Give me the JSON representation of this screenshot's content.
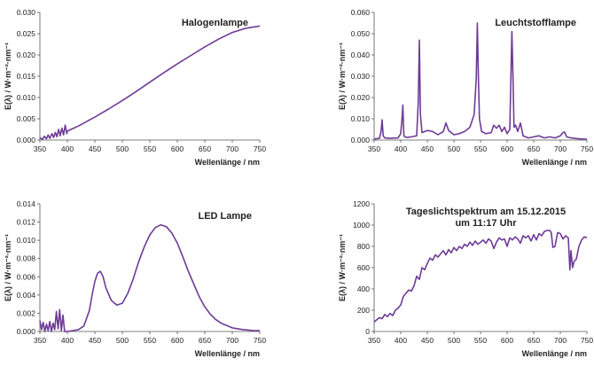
{
  "colors": {
    "series": "#6e3b97",
    "axis": "#555555",
    "text": "#222222"
  },
  "chart_data": [
    {
      "type": "line",
      "title": "Halogenlampe",
      "title_lines": [
        "Halogenlampe"
      ],
      "xlabel": "Wellenlänge / nm",
      "ylabel": "E(λ) / W·m⁻²·nm⁻¹",
      "xlim": [
        350,
        750
      ],
      "ylim": [
        0,
        0.03
      ],
      "xticks": [
        350,
        400,
        450,
        500,
        550,
        600,
        650,
        700,
        750
      ],
      "yticks": [
        "0.000",
        "0.005",
        "0.010",
        "0.015",
        "0.020",
        "0.025",
        "0.030"
      ],
      "grid": false,
      "series": [
        {
          "x": [
            350,
            355,
            358,
            362,
            365,
            368,
            372,
            375,
            378,
            381,
            384,
            387,
            390,
            393,
            396,
            399,
            400,
            410,
            420,
            430,
            450,
            475,
            500,
            525,
            550,
            575,
            600,
            625,
            650,
            675,
            700,
            725,
            750
          ],
          "y": [
            0.0005,
            0.0002,
            0.0009,
            0.0003,
            0.0012,
            0.0004,
            0.0015,
            0.0006,
            0.0018,
            0.0008,
            0.0025,
            0.001,
            0.0028,
            0.0012,
            0.0035,
            0.0015,
            0.0021,
            0.0027,
            0.0033,
            0.004,
            0.0054,
            0.0073,
            0.0093,
            0.0114,
            0.0136,
            0.0158,
            0.0179,
            0.0199,
            0.0219,
            0.0237,
            0.0253,
            0.0263,
            0.0268
          ]
        }
      ]
    },
    {
      "type": "line",
      "title": "Leuchtstofflampe",
      "title_lines": [
        "Leuchtstofflampe"
      ],
      "xlabel": "Wellenlänge / nm",
      "ylabel": "E(λ) / W·m⁻²·nm⁻¹",
      "xlim": [
        350,
        750
      ],
      "ylim": [
        0,
        0.06
      ],
      "xticks": [
        350,
        400,
        450,
        500,
        550,
        600,
        650,
        700,
        750
      ],
      "yticks": [
        "0.000",
        "0.010",
        "0.020",
        "0.030",
        "0.040",
        "0.050",
        "0.060"
      ],
      "grid": false,
      "series": [
        {
          "x": [
            350,
            360,
            363,
            365,
            367,
            370,
            380,
            395,
            400,
            403,
            404,
            405,
            406,
            408,
            412,
            420,
            430,
            433,
            435,
            437,
            440,
            450,
            460,
            470,
            480,
            485,
            490,
            500,
            510,
            520,
            530,
            538,
            542,
            544,
            546,
            548,
            552,
            560,
            570,
            575,
            580,
            585,
            590,
            595,
            600,
            605,
            609,
            611,
            613,
            616,
            620,
            625,
            630,
            640,
            650,
            660,
            670,
            680,
            690,
            700,
            705,
            708,
            712,
            720,
            730,
            740,
            750
          ],
          "y": [
            0.0005,
            0.0008,
            0.004,
            0.0095,
            0.002,
            0.001,
            0.0008,
            0.001,
            0.003,
            0.012,
            0.0165,
            0.008,
            0.002,
            0.0015,
            0.0012,
            0.0015,
            0.002,
            0.018,
            0.047,
            0.012,
            0.0035,
            0.0045,
            0.004,
            0.0025,
            0.004,
            0.008,
            0.0045,
            0.0025,
            0.003,
            0.004,
            0.006,
            0.012,
            0.029,
            0.055,
            0.03,
            0.01,
            0.004,
            0.003,
            0.0035,
            0.007,
            0.0055,
            0.007,
            0.004,
            0.006,
            0.003,
            0.005,
            0.051,
            0.03,
            0.006,
            0.007,
            0.004,
            0.008,
            0.002,
            0.001,
            0.0015,
            0.002,
            0.001,
            0.0015,
            0.001,
            0.002,
            0.0035,
            0.0038,
            0.0015,
            0.001,
            0.0007,
            0.0005,
            0.0004
          ]
        }
      ]
    },
    {
      "type": "line",
      "title": "LED Lampe",
      "title_lines": [
        "LED Lampe"
      ],
      "xlabel": "Wellenlänge / nm",
      "ylabel": "E(λ) / W·m⁻²·nm⁻¹",
      "xlim": [
        350,
        750
      ],
      "ylim": [
        0,
        0.014
      ],
      "xticks": [
        350,
        400,
        450,
        500,
        550,
        600,
        650,
        700,
        750
      ],
      "yticks": [
        "0.000",
        "0.002",
        "0.004",
        "0.006",
        "0.008",
        "0.010",
        "0.012",
        "0.014"
      ],
      "grid": false,
      "series": [
        {
          "x": [
            350,
            353,
            356,
            359,
            362,
            365,
            368,
            371,
            374,
            377,
            380,
            383,
            386,
            389,
            392,
            395,
            400,
            410,
            420,
            430,
            440,
            445,
            450,
            455,
            460,
            465,
            470,
            480,
            490,
            500,
            510,
            520,
            530,
            540,
            550,
            560,
            570,
            580,
            590,
            600,
            610,
            620,
            630,
            640,
            650,
            660,
            670,
            680,
            700,
            720,
            740,
            750
          ],
          "y": [
            0.0012,
            0.0002,
            0.001,
            0.0,
            0.0008,
            0.0001,
            0.0011,
            0.0,
            0.0009,
            0.0002,
            0.0022,
            0.0003,
            0.0024,
            0.0001,
            0.0018,
            0.0,
            0.0,
            0.0001,
            0.0002,
            0.0006,
            0.0023,
            0.004,
            0.0055,
            0.0064,
            0.0066,
            0.006,
            0.0048,
            0.0034,
            0.0029,
            0.0031,
            0.0042,
            0.0058,
            0.0077,
            0.0093,
            0.0106,
            0.0114,
            0.0117,
            0.0115,
            0.0108,
            0.0097,
            0.0082,
            0.0066,
            0.0052,
            0.0038,
            0.0027,
            0.0019,
            0.0013,
            0.0009,
            0.0004,
            0.0002,
            0.0001,
            0.0001
          ]
        }
      ]
    },
    {
      "type": "line",
      "title": "Tageslichtspektrum  am 15.12.2015 um 11:17 Uhr",
      "title_lines": [
        "Tageslichtspektrum  am 15.12.2015",
        "um 11:17 Uhr"
      ],
      "xlabel": "Wellenlänge / nm",
      "ylabel": "E(λ) / W·m⁻²·nm⁻¹",
      "xlim": [
        350,
        750
      ],
      "ylim": [
        0,
        1200
      ],
      "xticks": [
        350,
        400,
        450,
        500,
        550,
        600,
        650,
        700,
        750
      ],
      "yticks": [
        "0",
        "200",
        "400",
        "600",
        "800",
        "1000",
        "1200"
      ],
      "grid": false,
      "series": [
        {
          "x": [
            350,
            355,
            360,
            365,
            370,
            375,
            380,
            385,
            390,
            395,
            400,
            405,
            410,
            415,
            420,
            425,
            430,
            435,
            440,
            445,
            450,
            455,
            460,
            465,
            470,
            475,
            480,
            485,
            490,
            495,
            500,
            505,
            510,
            515,
            520,
            525,
            530,
            535,
            540,
            545,
            550,
            555,
            560,
            565,
            570,
            575,
            580,
            585,
            590,
            595,
            600,
            605,
            610,
            615,
            620,
            625,
            630,
            635,
            640,
            645,
            650,
            655,
            660,
            665,
            670,
            675,
            680,
            683,
            686,
            690,
            695,
            700,
            705,
            710,
            715,
            718,
            720,
            723,
            726,
            730,
            735,
            740,
            745,
            750
          ],
          "y": [
            90,
            110,
            130,
            120,
            160,
            140,
            170,
            150,
            200,
            220,
            250,
            330,
            360,
            390,
            380,
            430,
            520,
            490,
            600,
            580,
            640,
            690,
            670,
            720,
            700,
            730,
            760,
            720,
            770,
            740,
            790,
            760,
            800,
            780,
            820,
            800,
            840,
            810,
            850,
            820,
            840,
            860,
            830,
            870,
            850,
            780,
            840,
            880,
            860,
            870,
            800,
            880,
            860,
            890,
            870,
            830,
            900,
            880,
            900,
            850,
            910,
            860,
            920,
            900,
            940,
            950,
            950,
            930,
            790,
            800,
            930,
            920,
            870,
            900,
            880,
            580,
            760,
            600,
            660,
            680,
            800,
            860,
            890,
            880
          ]
        }
      ]
    }
  ]
}
